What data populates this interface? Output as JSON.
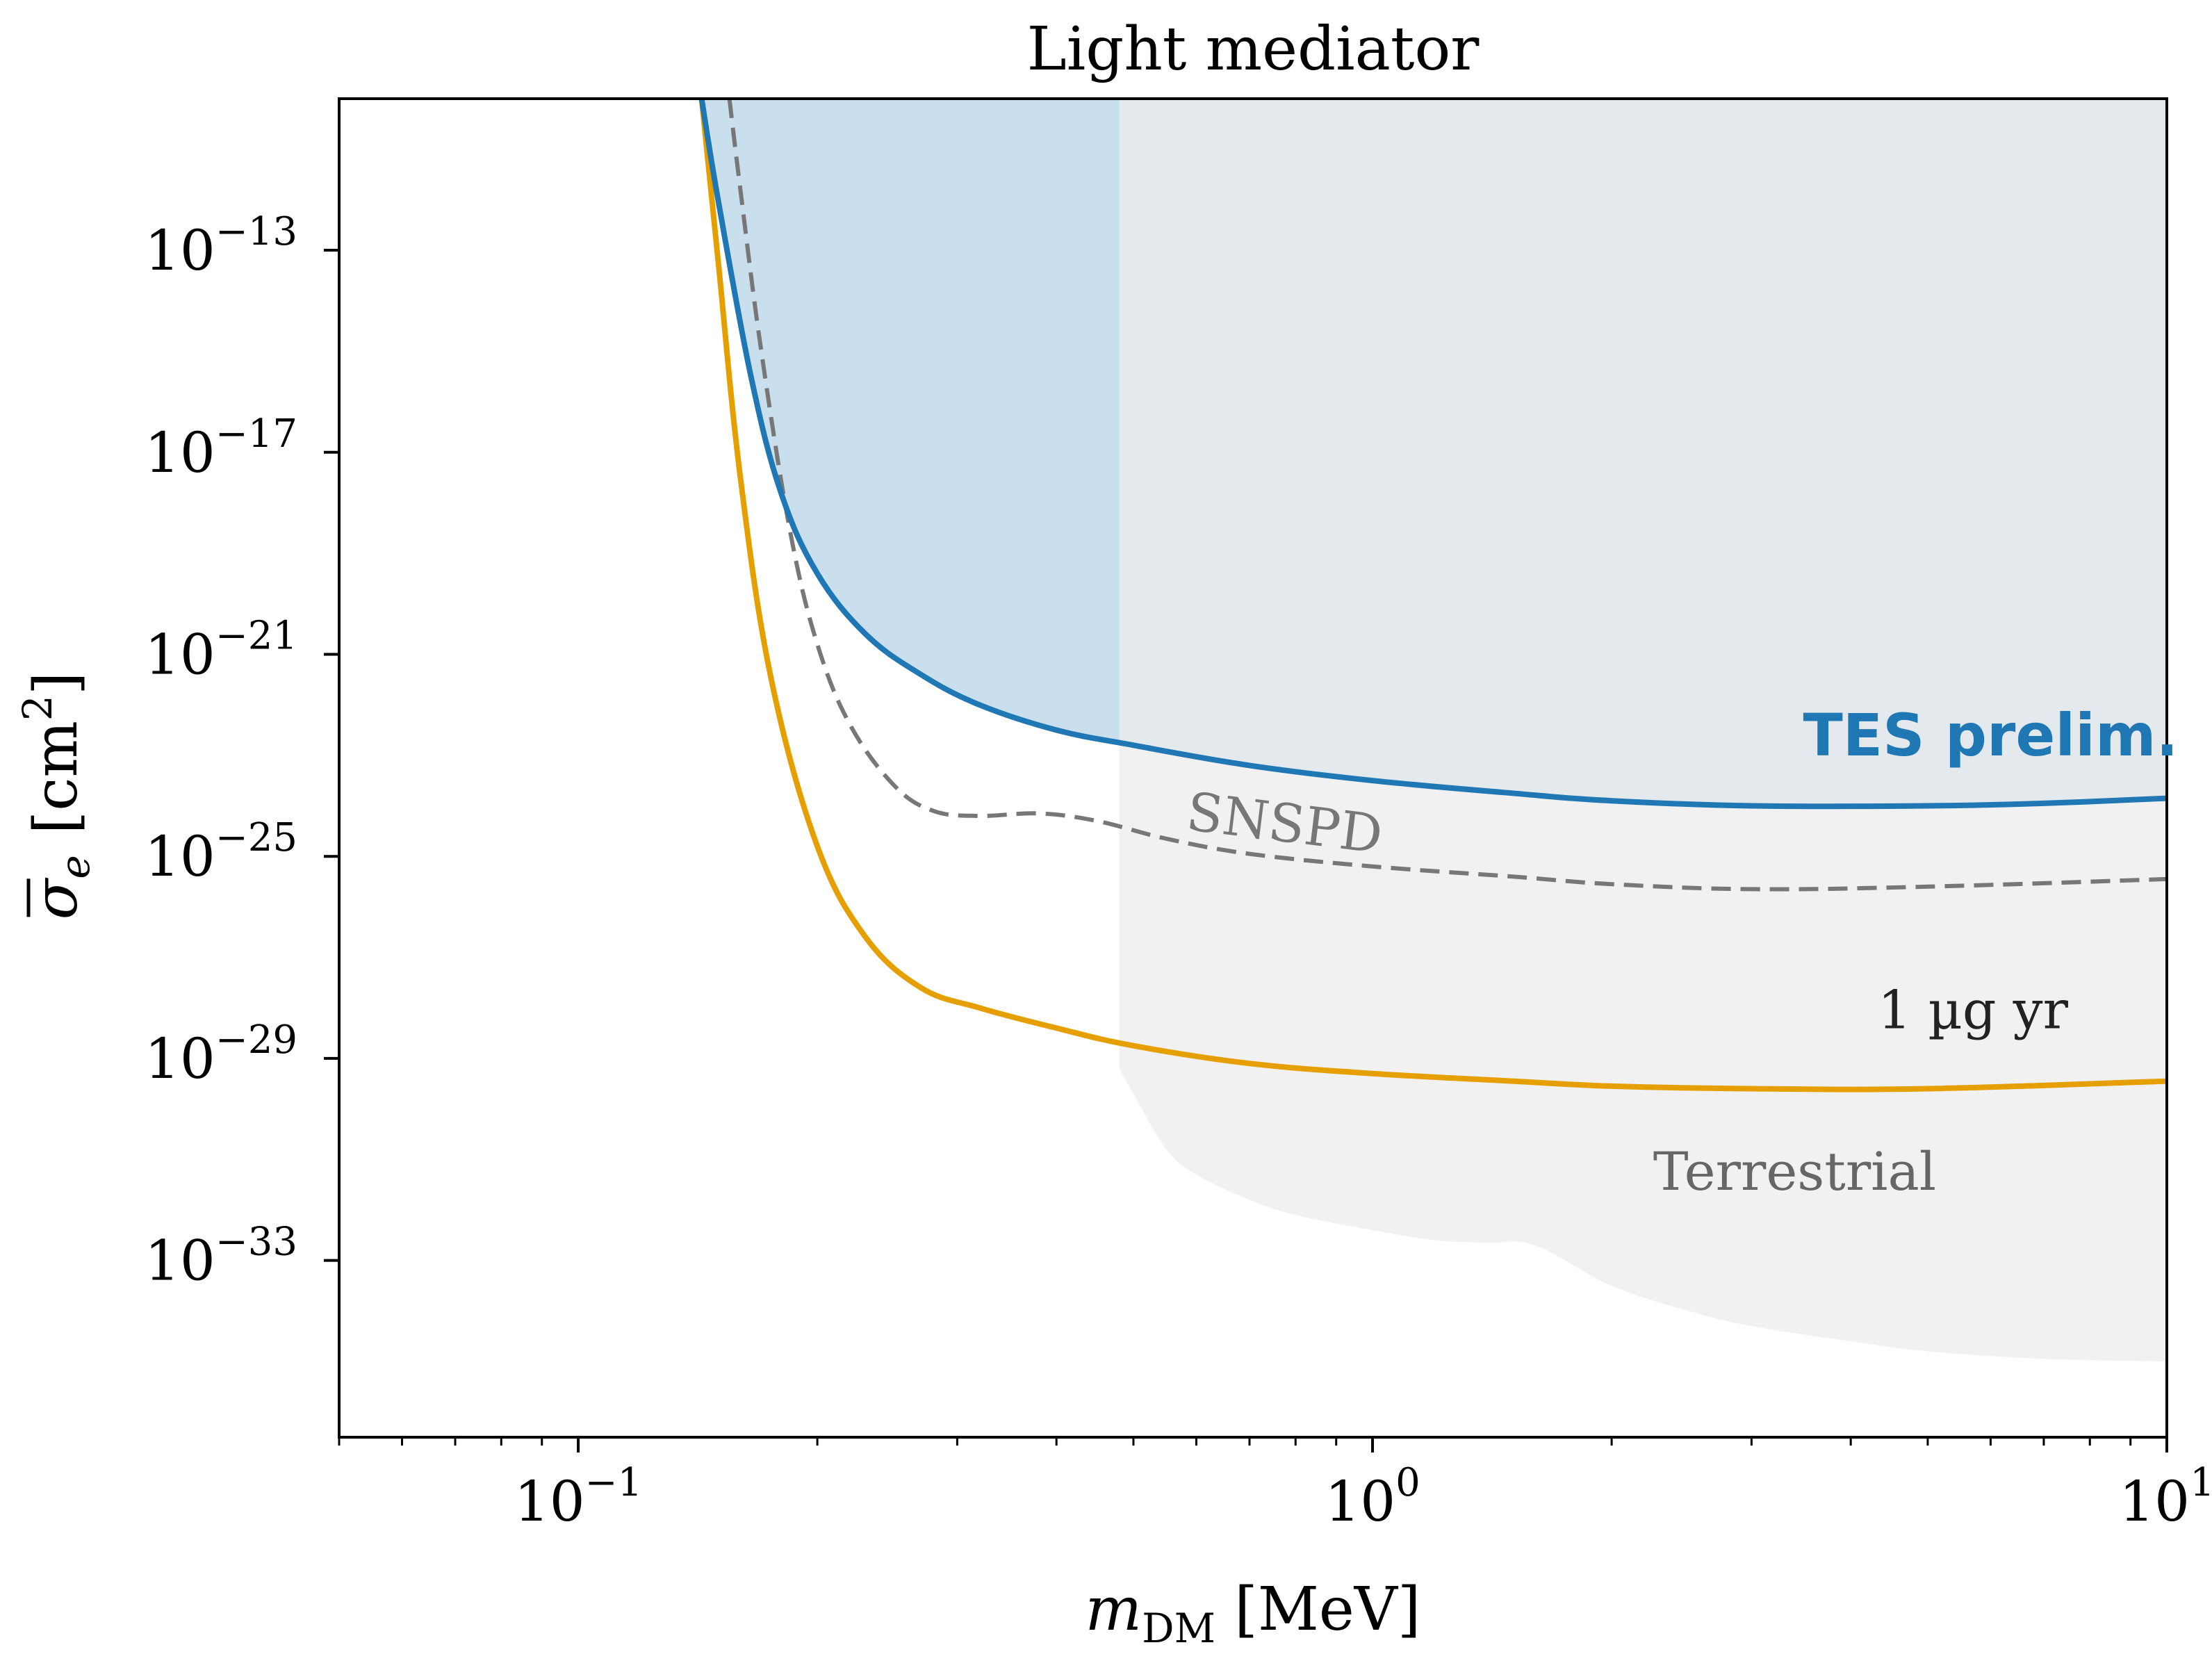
{
  "chart_data": {
    "type": "line",
    "title": "Light mediator",
    "xlabel": "m_DM [MeV]",
    "xlabel_base": "m",
    "xlabel_sub": "DM",
    "xlabel_unit": " [MeV]",
    "ylabel": "σ̄_e [cm²]",
    "ylabel_sym": "σ",
    "ylabel_sub": "e",
    "ylabel_unit_open": "[cm",
    "ylabel_unit_sup": "2",
    "ylabel_unit_close": "]",
    "xscale": "log",
    "yscale": "log",
    "xlim": [
      0.05,
      10
    ],
    "ylim_log10": [
      -36.5,
      -10
    ],
    "x_ticks": [
      {
        "value": 0.1,
        "base": "10",
        "exp": "−1"
      },
      {
        "value": 1,
        "base": "10",
        "exp": "0"
      },
      {
        "value": 10,
        "base": "10",
        "exp": "1"
      }
    ],
    "y_ticks": [
      {
        "log10": -13,
        "base": "10",
        "exp": "−13"
      },
      {
        "log10": -17,
        "base": "10",
        "exp": "−17"
      },
      {
        "log10": -21,
        "base": "10",
        "exp": "−21"
      },
      {
        "log10": -25,
        "base": "10",
        "exp": "−25"
      },
      {
        "log10": -29,
        "base": "10",
        "exp": "−29"
      },
      {
        "log10": -33,
        "base": "10",
        "exp": "−33"
      }
    ],
    "grid": false,
    "series": [
      {
        "name": "TES prelim.",
        "color": "#1f77b4",
        "style": "solid",
        "fill": true,
        "fill_color": "#c9dfed",
        "points": [
          [
            0.143,
            -10
          ],
          [
            0.15,
            -12.0
          ],
          [
            0.165,
            -15.5
          ],
          [
            0.18,
            -17.8
          ],
          [
            0.2,
            -19.4
          ],
          [
            0.23,
            -20.6
          ],
          [
            0.27,
            -21.4
          ],
          [
            0.32,
            -22.0
          ],
          [
            0.4,
            -22.5
          ],
          [
            0.5,
            -22.8
          ],
          [
            0.7,
            -23.2
          ],
          [
            1.0,
            -23.5
          ],
          [
            1.5,
            -23.75
          ],
          [
            2.0,
            -23.9
          ],
          [
            3.0,
            -24.0
          ],
          [
            5.0,
            -24.0
          ],
          [
            7.0,
            -23.95
          ],
          [
            10.0,
            -23.85
          ]
        ]
      },
      {
        "name": "SNSPD",
        "color": "#777777",
        "style": "dashed",
        "fill": false,
        "points": [
          [
            0.155,
            -10
          ],
          [
            0.16,
            -11.8
          ],
          [
            0.17,
            -15.0
          ],
          [
            0.185,
            -18.6
          ],
          [
            0.2,
            -20.8
          ],
          [
            0.22,
            -22.4
          ],
          [
            0.25,
            -23.6
          ],
          [
            0.28,
            -24.1
          ],
          [
            0.32,
            -24.2
          ],
          [
            0.38,
            -24.15
          ],
          [
            0.45,
            -24.3
          ],
          [
            0.55,
            -24.65
          ],
          [
            0.7,
            -24.95
          ],
          [
            1.0,
            -25.2
          ],
          [
            1.5,
            -25.4
          ],
          [
            2.0,
            -25.55
          ],
          [
            3.0,
            -25.65
          ],
          [
            5.0,
            -25.6
          ],
          [
            10.0,
            -25.45
          ]
        ]
      },
      {
        "name": "1 µg yr",
        "color": "#e69f00",
        "style": "solid",
        "fill": false,
        "points": [
          [
            0.143,
            -10
          ],
          [
            0.15,
            -13.2
          ],
          [
            0.16,
            -17.5
          ],
          [
            0.175,
            -21.5
          ],
          [
            0.2,
            -24.8
          ],
          [
            0.23,
            -26.6
          ],
          [
            0.27,
            -27.6
          ],
          [
            0.32,
            -28.0
          ],
          [
            0.4,
            -28.4
          ],
          [
            0.5,
            -28.75
          ],
          [
            0.7,
            -29.1
          ],
          [
            1.0,
            -29.3
          ],
          [
            1.5,
            -29.45
          ],
          [
            2.0,
            -29.55
          ],
          [
            3.0,
            -29.6
          ],
          [
            5.0,
            -29.6
          ],
          [
            10.0,
            -29.45
          ]
        ]
      }
    ],
    "regions": [
      {
        "name": "Terrestrial",
        "color": "#ececec",
        "boundary": [
          [
            0.48,
            -29.2
          ],
          [
            0.5,
            -29.7
          ],
          [
            0.55,
            -30.8
          ],
          [
            0.6,
            -31.3
          ],
          [
            0.7,
            -31.8
          ],
          [
            0.8,
            -32.1
          ],
          [
            1.0,
            -32.4
          ],
          [
            1.2,
            -32.6
          ],
          [
            1.4,
            -32.65
          ],
          [
            1.6,
            -32.7
          ],
          [
            2.0,
            -33.5
          ],
          [
            2.5,
            -34.0
          ],
          [
            3.0,
            -34.3
          ],
          [
            4.0,
            -34.6
          ],
          [
            5.0,
            -34.8
          ],
          [
            7.0,
            -34.95
          ],
          [
            10.0,
            -35.0
          ]
        ]
      }
    ],
    "annotations": [
      {
        "name": "tes-label",
        "text": "TES prelim.",
        "color": "#1f77b4",
        "bold": true,
        "x": 6.0,
        "y_log10": -23.0,
        "anchor": "middle"
      },
      {
        "name": "snspd-label",
        "text": "SNSPD",
        "color": "#777777",
        "bold": false,
        "x": 0.77,
        "y_log10": -24.7,
        "anchor": "middle",
        "rotate_deg": 7
      },
      {
        "name": "mass-label",
        "text": "1 µg yr",
        "color": "#222222",
        "bold": false,
        "x": 5.7,
        "y_log10": -28.4,
        "anchor": "middle"
      },
      {
        "name": "terrestrial-label",
        "text": "Terrestrial",
        "color": "#666666",
        "bold": false,
        "x": 3.4,
        "y_log10": -31.6,
        "anchor": "middle"
      }
    ]
  }
}
